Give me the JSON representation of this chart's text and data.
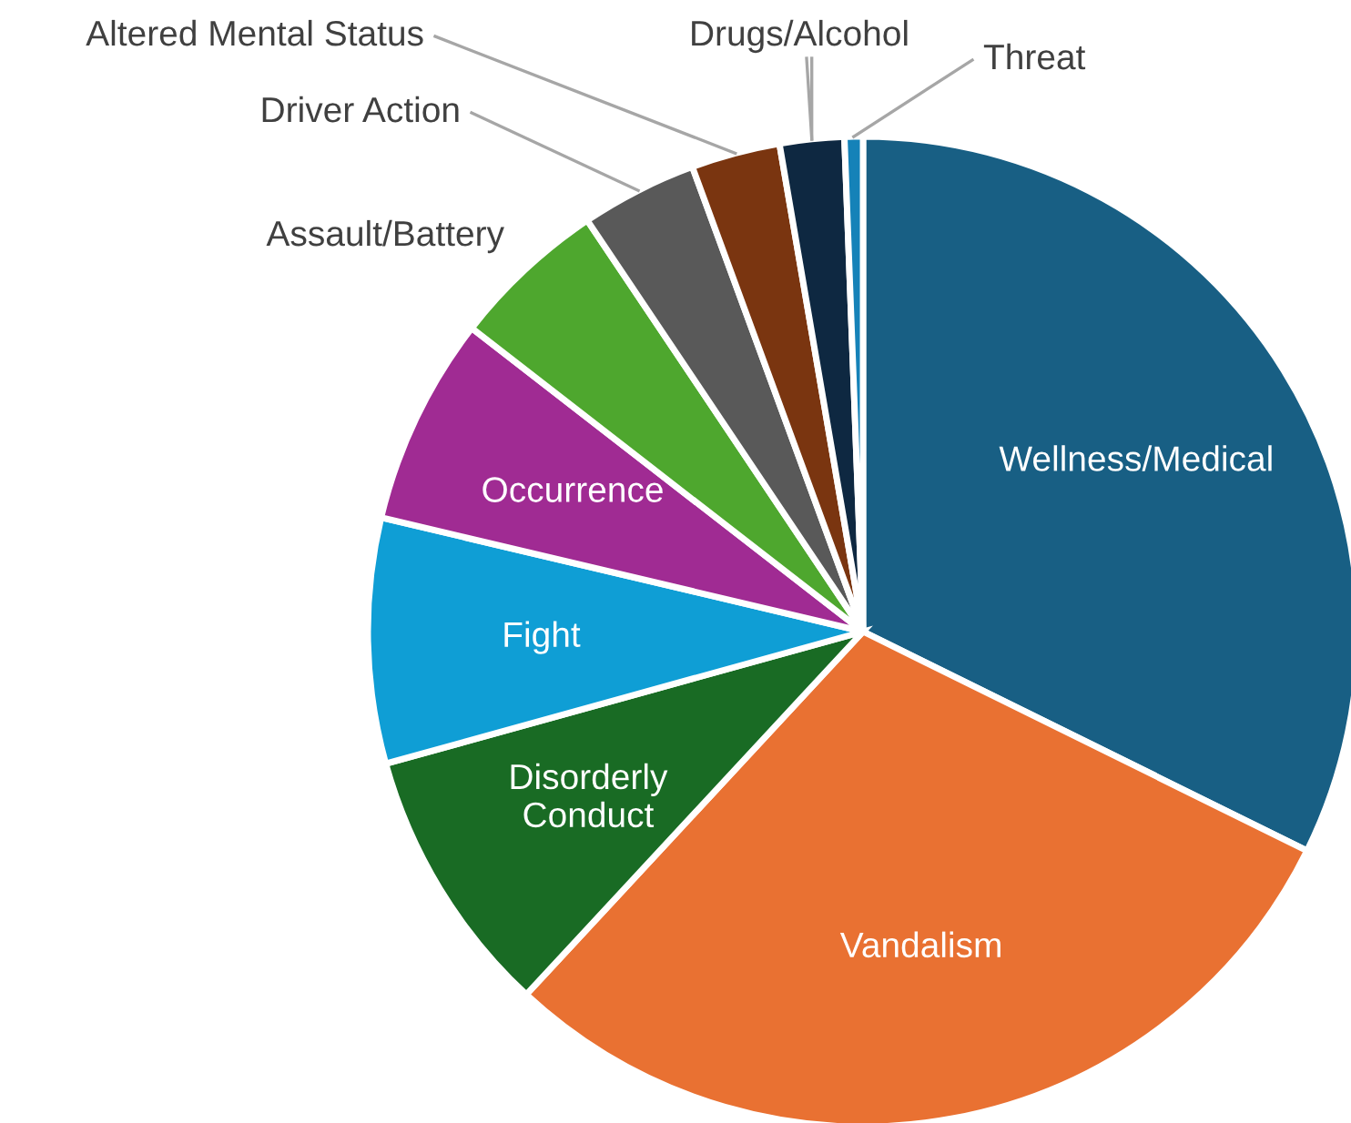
{
  "chart_data": {
    "type": "pie",
    "categories": [
      "Wellness/Medical",
      "Vandalism",
      "Disorderly Conduct",
      "Fight",
      "Occurrence",
      "Assault/Battery",
      "Driver Action",
      "Altered Mental Status",
      "Drugs/Alcohol",
      "Threat"
    ],
    "values": [
      32.3,
      29.6,
      8.8,
      8.0,
      6.8,
      5.1,
      3.8,
      2.9,
      2.1,
      0.6
    ],
    "colors": [
      "#185f84",
      "#e97132",
      "#196b24",
      "#0f9ed5",
      "#a02b93",
      "#4ea72e",
      "#595959",
      "#7a3510",
      "#0e2841",
      "#1582b8"
    ],
    "legend": false
  }
}
